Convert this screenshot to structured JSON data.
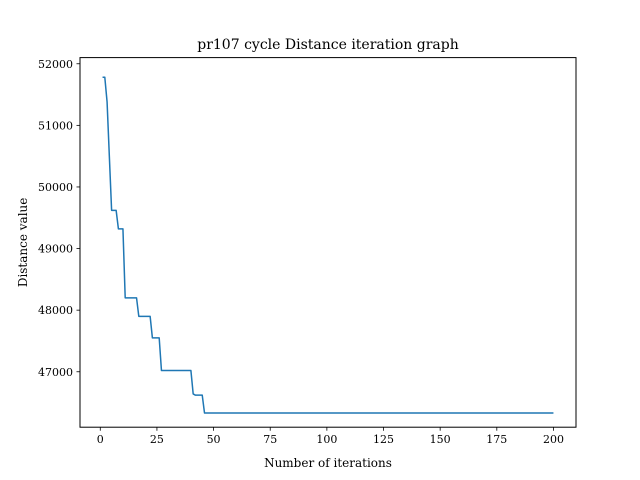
{
  "chart_data": {
    "type": "line",
    "title": "pr107 cycle Distance iteration graph",
    "xlabel": "Number of iterations",
    "ylabel": "Distance value",
    "xlim": [
      -8.95,
      209.95
    ],
    "ylim": [
      46100,
      52100
    ],
    "xticks": [
      0,
      25,
      50,
      75,
      100,
      125,
      150,
      175,
      200
    ],
    "yticks": [
      47000,
      48000,
      49000,
      50000,
      51000,
      52000
    ],
    "grid": false,
    "legend": "none",
    "series": [
      {
        "color": "#1f77b4",
        "x": [
          1,
          2,
          3,
          4,
          5,
          6,
          7,
          8,
          9,
          10,
          11,
          12,
          13,
          14,
          15,
          16,
          17,
          18,
          19,
          20,
          21,
          22,
          23,
          24,
          25,
          26,
          27,
          28,
          29,
          30,
          31,
          32,
          33,
          34,
          35,
          36,
          37,
          38,
          39,
          40,
          41,
          42,
          43,
          44,
          45,
          46,
          47,
          48,
          49,
          50,
          60,
          80,
          100,
          120,
          140,
          160,
          180,
          200
        ],
        "y": [
          51780,
          51780,
          51380,
          50500,
          49620,
          49620,
          49620,
          49320,
          49320,
          49320,
          48200,
          48200,
          48200,
          48200,
          48200,
          48200,
          47900,
          47900,
          47900,
          47900,
          47900,
          47900,
          47550,
          47550,
          47550,
          47550,
          47020,
          47020,
          47020,
          47020,
          47020,
          47020,
          47020,
          47020,
          47020,
          47020,
          47020,
          47020,
          47020,
          47020,
          46640,
          46620,
          46620,
          46620,
          46620,
          46330,
          46330,
          46330,
          46330,
          46330,
          46330,
          46330,
          46330,
          46330,
          46330,
          46330,
          46330,
          46330
        ]
      }
    ]
  }
}
